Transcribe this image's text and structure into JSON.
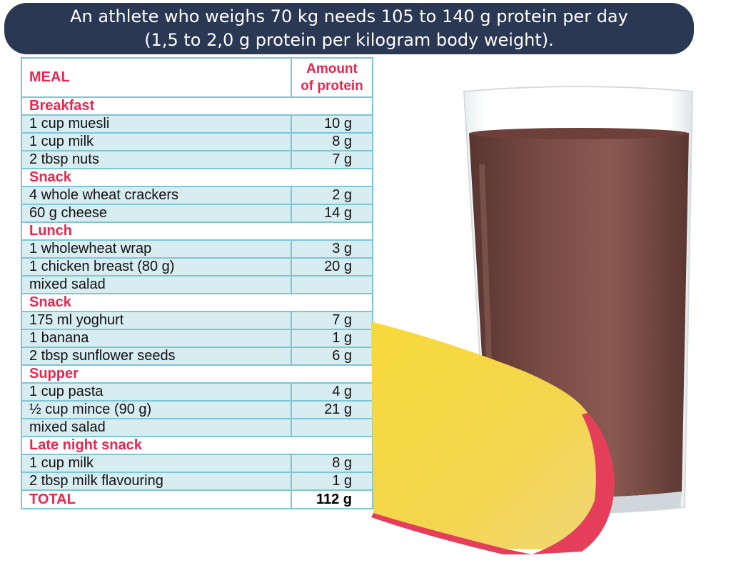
{
  "banner": {
    "line1": "An athlete who weighs 70 kg needs 105 to 140 g protein per day",
    "line2": "(1,5 to 2,0 g protein per kilogram body weight)."
  },
  "table": {
    "header": {
      "meal": "MEAL",
      "amount_line1": "Amount",
      "amount_line2": "of protein"
    },
    "sections": [
      {
        "name": "Breakfast",
        "items": [
          {
            "food": "1 cup muesli",
            "amount": "10 g"
          },
          {
            "food": "1 cup milk",
            "amount": "8 g"
          },
          {
            "food": "2 tbsp nuts",
            "amount": "7 g"
          }
        ]
      },
      {
        "name": "Snack",
        "items": [
          {
            "food": "4 whole wheat crackers",
            "amount": "2 g"
          },
          {
            "food": "60 g cheese",
            "amount": "14 g"
          }
        ]
      },
      {
        "name": "Lunch",
        "items": [
          {
            "food": "1 wholewheat wrap",
            "amount": "3 g"
          },
          {
            "food": "1 chicken breast (80 g)",
            "amount": "20 g"
          },
          {
            "food": "mixed salad",
            "amount": ""
          }
        ]
      },
      {
        "name": "Snack",
        "items": [
          {
            "food": "175 ml yoghurt",
            "amount": "7 g"
          },
          {
            "food": "1 banana",
            "amount": "1 g"
          },
          {
            "food": "2 tbsp sunflower seeds",
            "amount": "6 g"
          }
        ]
      },
      {
        "name": "Supper",
        "items": [
          {
            "food": "1 cup pasta",
            "amount": "4 g"
          },
          {
            "food": "½ cup mince (90 g)",
            "amount": "21 g"
          },
          {
            "food": "mixed salad",
            "amount": ""
          }
        ]
      },
      {
        "name": "Late night snack",
        "items": [
          {
            "food": "1 cup milk",
            "amount": "8 g"
          },
          {
            "food": "2 tbsp milk flavouring",
            "amount": "1 g"
          }
        ]
      }
    ],
    "total": {
      "label": "TOTAL",
      "amount": "112 g"
    }
  },
  "colors": {
    "banner_bg": "#2a3854",
    "accent_red": "#e8264f",
    "table_fill": "#d7edf2",
    "table_border": "#7fc5d4"
  },
  "images": {
    "photo": "chocolate-milkshake-glass-and-cheese-wedge"
  }
}
